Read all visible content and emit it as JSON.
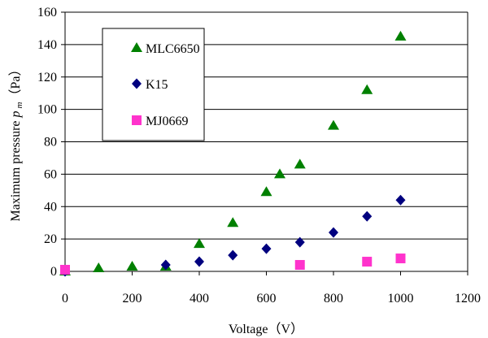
{
  "chart_data": {
    "type": "scatter",
    "xlabel": "Voltage（V）",
    "ylabel_main": "Maximum pressure ",
    "ylabel_symbol": "p",
    "ylabel_sub": "m",
    "ylabel_unit": "（Pa）",
    "xlim": [
      0,
      1200
    ],
    "ylim": [
      0,
      160
    ],
    "x_ticks": [
      0,
      200,
      400,
      600,
      800,
      1000,
      1200
    ],
    "y_ticks": [
      0,
      20,
      40,
      60,
      80,
      100,
      120,
      140,
      160
    ],
    "grid_y": true,
    "grid_x": false,
    "legend_position": "top-left",
    "series": [
      {
        "name": "MLC6650",
        "marker": "triangle",
        "color": "#008000",
        "points": [
          [
            0,
            0
          ],
          [
            100,
            2
          ],
          [
            200,
            3
          ],
          [
            300,
            3
          ],
          [
            400,
            17
          ],
          [
            500,
            30
          ],
          [
            600,
            49
          ],
          [
            640,
            60
          ],
          [
            700,
            66
          ],
          [
            800,
            90
          ],
          [
            900,
            112
          ],
          [
            1000,
            145
          ]
        ]
      },
      {
        "name": "K15",
        "marker": "diamond",
        "color": "#00007f",
        "points": [
          [
            0,
            0
          ],
          [
            300,
            4
          ],
          [
            400,
            6
          ],
          [
            500,
            10
          ],
          [
            600,
            14
          ],
          [
            700,
            18
          ],
          [
            800,
            24
          ],
          [
            900,
            34
          ],
          [
            1000,
            44
          ]
        ]
      },
      {
        "name": "MJ0669",
        "marker": "square",
        "color": "#ff33cc",
        "points": [
          [
            0,
            1
          ],
          [
            700,
            4
          ],
          [
            900,
            6
          ],
          [
            1000,
            8
          ]
        ]
      }
    ]
  }
}
